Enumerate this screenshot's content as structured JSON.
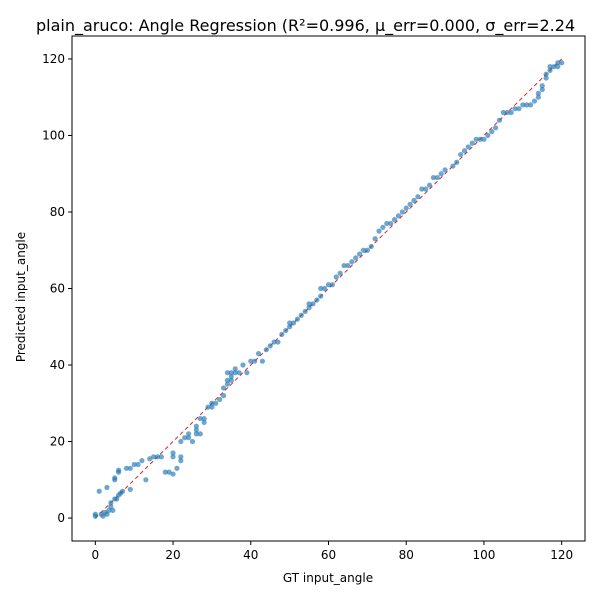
{
  "chart_data": {
    "type": "scatter",
    "title": "plain_aruco: Angle Regression  (R²=0.996, μ_err=0.000, σ_err=2.24",
    "xlabel": "GT input_angle",
    "ylabel": "Predicted input_angle",
    "xlim": [
      -6,
      126
    ],
    "ylim": [
      -6,
      126
    ],
    "xticks": [
      0,
      20,
      40,
      60,
      80,
      100,
      120
    ],
    "yticks": [
      0,
      20,
      40,
      60,
      80,
      100,
      120
    ],
    "grid": false,
    "colors": {
      "points": "#1f77b4",
      "identity_line": "#d62728"
    },
    "identity_line": [
      [
        0,
        0
      ],
      [
        120,
        120
      ]
    ],
    "series": [
      {
        "values_xy": [
          [
            0,
            1
          ],
          [
            0,
            0.5
          ],
          [
            1,
            7
          ],
          [
            1.5,
            1
          ],
          [
            2,
            0.5
          ],
          [
            2.5,
            1.5
          ],
          [
            3,
            1
          ],
          [
            3,
            8
          ],
          [
            3.5,
            2
          ],
          [
            4,
            3
          ],
          [
            4,
            4
          ],
          [
            4.5,
            2
          ],
          [
            5,
            10
          ],
          [
            5,
            10.5
          ],
          [
            5,
            5
          ],
          [
            5.5,
            5
          ],
          [
            6,
            6
          ],
          [
            6,
            12
          ],
          [
            6,
            12.5
          ],
          [
            6.5,
            6.5
          ],
          [
            7,
            7
          ],
          [
            8,
            13
          ],
          [
            9,
            13
          ],
          [
            9,
            7.5
          ],
          [
            10,
            14
          ],
          [
            11,
            14
          ],
          [
            12,
            15
          ],
          [
            13,
            10
          ],
          [
            14,
            15.5
          ],
          [
            15,
            16
          ],
          [
            16,
            16
          ],
          [
            17,
            16
          ],
          [
            18,
            12
          ],
          [
            19,
            12
          ],
          [
            20,
            17
          ],
          [
            20,
            16
          ],
          [
            20,
            11.5
          ],
          [
            21,
            13
          ],
          [
            22,
            15
          ],
          [
            22,
            16
          ],
          [
            22,
            20
          ],
          [
            23,
            21
          ],
          [
            24,
            21
          ],
          [
            24,
            22
          ],
          [
            25,
            20
          ],
          [
            26,
            23
          ],
          [
            26,
            24
          ],
          [
            26,
            22
          ],
          [
            27,
            22
          ],
          [
            27,
            26
          ],
          [
            28,
            26
          ],
          [
            28,
            25
          ],
          [
            29,
            29
          ],
          [
            30,
            30
          ],
          [
            30,
            29
          ],
          [
            31,
            30
          ],
          [
            32,
            31
          ],
          [
            33,
            32
          ],
          [
            33,
            34
          ],
          [
            34,
            35
          ],
          [
            34,
            36
          ],
          [
            34,
            38
          ],
          [
            35,
            36
          ],
          [
            35,
            37
          ],
          [
            35,
            38
          ],
          [
            36,
            39
          ],
          [
            36,
            38
          ],
          [
            37,
            38
          ],
          [
            38,
            40
          ],
          [
            39,
            38
          ],
          [
            40,
            41
          ],
          [
            41,
            41
          ],
          [
            42,
            43
          ],
          [
            43,
            41
          ],
          [
            44,
            44
          ],
          [
            45,
            45
          ],
          [
            46,
            46
          ],
          [
            47,
            46
          ],
          [
            48,
            48
          ],
          [
            49,
            49
          ],
          [
            50,
            50
          ],
          [
            50,
            51
          ],
          [
            51,
            51
          ],
          [
            52,
            52
          ],
          [
            53,
            53
          ],
          [
            54,
            54
          ],
          [
            55,
            55
          ],
          [
            55,
            56
          ],
          [
            56,
            56
          ],
          [
            57,
            57
          ],
          [
            58,
            58
          ],
          [
            58,
            60
          ],
          [
            59,
            60
          ],
          [
            60,
            61
          ],
          [
            61,
            61
          ],
          [
            62,
            63
          ],
          [
            63,
            64
          ],
          [
            64,
            66
          ],
          [
            65,
            66
          ],
          [
            66,
            67
          ],
          [
            67,
            68
          ],
          [
            68,
            69
          ],
          [
            69,
            70
          ],
          [
            70,
            70
          ],
          [
            71,
            71
          ],
          [
            72,
            73
          ],
          [
            73,
            75
          ],
          [
            74,
            76
          ],
          [
            75,
            77
          ],
          [
            76,
            77
          ],
          [
            77,
            78
          ],
          [
            78,
            79
          ],
          [
            79,
            80
          ],
          [
            80,
            81
          ],
          [
            81,
            82
          ],
          [
            82,
            83
          ],
          [
            83,
            84
          ],
          [
            84,
            86
          ],
          [
            85,
            86
          ],
          [
            86,
            87
          ],
          [
            87,
            89
          ],
          [
            88,
            89
          ],
          [
            89,
            90
          ],
          [
            90,
            91
          ],
          [
            92,
            92
          ],
          [
            93,
            93
          ],
          [
            94,
            95
          ],
          [
            95,
            96
          ],
          [
            96,
            97
          ],
          [
            97,
            98
          ],
          [
            98,
            99
          ],
          [
            99,
            99
          ],
          [
            100,
            99
          ],
          [
            101,
            100
          ],
          [
            102,
            101
          ],
          [
            103,
            102
          ],
          [
            104,
            104
          ],
          [
            105,
            106
          ],
          [
            106,
            106
          ],
          [
            107,
            106
          ],
          [
            108,
            107
          ],
          [
            109,
            107
          ],
          [
            110,
            108
          ],
          [
            111,
            108
          ],
          [
            112,
            108
          ],
          [
            113,
            109
          ],
          [
            114,
            110
          ],
          [
            114,
            111
          ],
          [
            115,
            112
          ],
          [
            115,
            113
          ],
          [
            116,
            115
          ],
          [
            116,
            116
          ],
          [
            117,
            117
          ],
          [
            117,
            118
          ],
          [
            118,
            118
          ],
          [
            119,
            119
          ],
          [
            119,
            118
          ],
          [
            120,
            119
          ]
        ]
      }
    ]
  }
}
